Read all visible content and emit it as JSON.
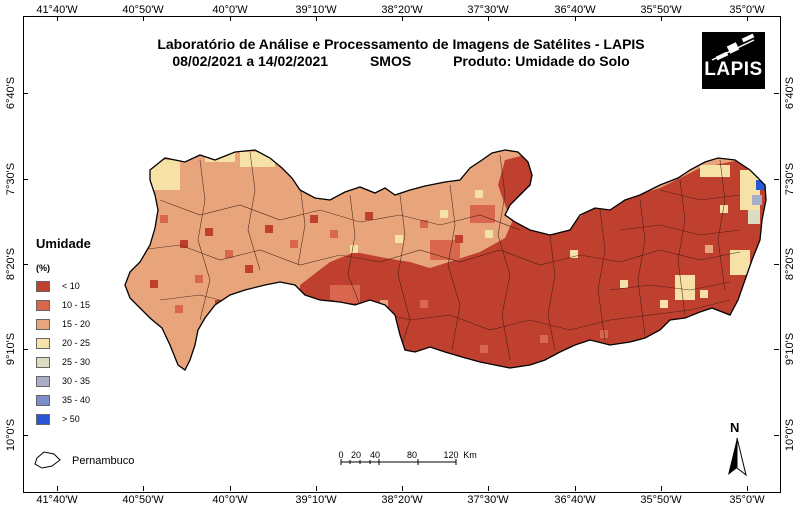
{
  "title_line1": "Laboratório de Análise e Processamento de Imagens de Satélites - LAPIS",
  "period": "08/02/2021  a  14/02/2021",
  "sensor": "SMOS",
  "product": "Produto: Umidade do Solo",
  "logo_text": "LAPIS",
  "longitude_labels": [
    "41°40'W",
    "40°50'W",
    "40°0'W",
    "39°10'W",
    "38°20'W",
    "37°30'W",
    "36°40'W",
    "35°50'W",
    "35°0'W"
  ],
  "latitude_labels": [
    "6°40'S",
    "7°30'S",
    "8°20'S",
    "9°10'S",
    "10°0'S"
  ],
  "legend": {
    "title": "Umidade",
    "unit": "(%)",
    "classes": [
      {
        "label": "< 10",
        "color": "#c0402f"
      },
      {
        "label": "10 - 15",
        "color": "#d9674e"
      },
      {
        "label": "15 - 20",
        "color": "#e8a57c"
      },
      {
        "label": "20 - 25",
        "color": "#f6e2a6"
      },
      {
        "label": "25 - 30",
        "color": "#dcdcc0"
      },
      {
        "label": "30 - 35",
        "color": "#a8aec8"
      },
      {
        "label": "35 - 40",
        "color": "#7c8ccc"
      },
      {
        "label": "> 50",
        "color": "#2a56d6"
      }
    ]
  },
  "state_label": "Pernambuco",
  "scale": {
    "ticks": [
      "0",
      "20",
      "40",
      "80",
      "120"
    ],
    "unit": "Km"
  },
  "north_label": "N"
}
